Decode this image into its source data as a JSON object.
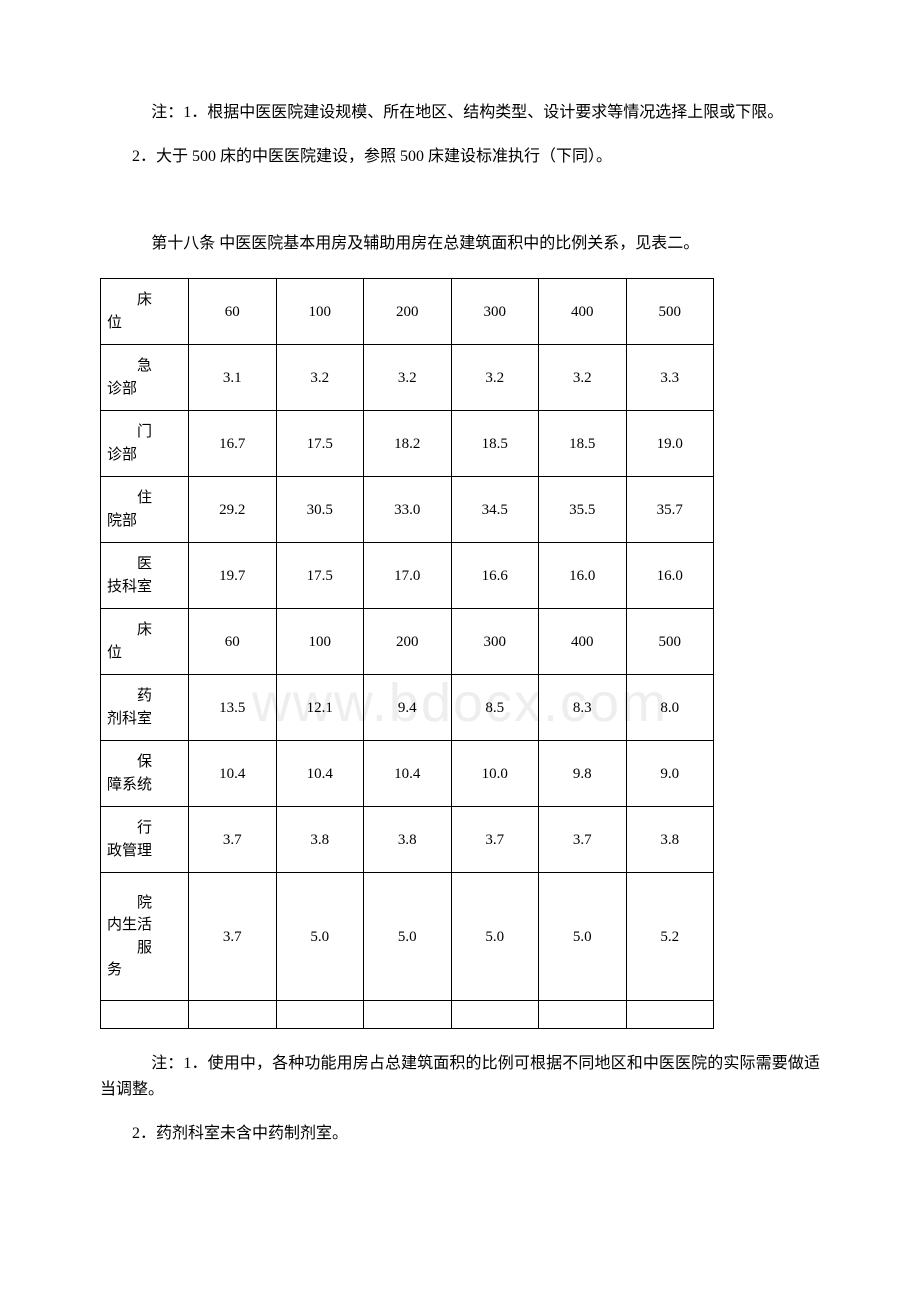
{
  "watermark": "www.bdocx.com",
  "paragraphs": {
    "note1a": "注：1．根据中医医院建设规模、所在地区、结构类型、设计要求等情况选择上限或下限。",
    "note1b": "2．大于 500 床的中医医院建设，参照 500 床建设标准执行（下同）。",
    "article18": "第十八条  中医医院基本用房及辅助用房在总建筑面积中的比例关系，见表二。",
    "note2a": "注：1．使用中，各种功能用房占总建筑面积的比例可根据不同地区和中医医院的实际需要做适当调整。",
    "note2b": "2．药剂科室未含中药制剂室。"
  },
  "table": {
    "rowlabels": {
      "r0a": "床",
      "r0b": "位",
      "r1a": "急",
      "r1b": "诊部",
      "r2a": "门",
      "r2b": "诊部",
      "r3a": "住",
      "r3b": "院部",
      "r4a": "医",
      "r4b": "技科室",
      "r5a": "床",
      "r5b": "位",
      "r6a": "药",
      "r6b": "剂科室",
      "r7a": "保",
      "r7b": "障系统",
      "r8a": "行",
      "r8b": "政管理",
      "r9a": "院",
      "r9b": "内生活",
      "r9c": "服",
      "r9d": "务"
    },
    "rows": [
      [
        "60",
        "100",
        "200",
        "300",
        "400",
        "500"
      ],
      [
        "3.1",
        "3.2",
        "3.2",
        "3.2",
        "3.2",
        "3.3"
      ],
      [
        "16.7",
        "17.5",
        "18.2",
        "18.5",
        "18.5",
        "19.0"
      ],
      [
        "29.2",
        "30.5",
        "33.0",
        "34.5",
        "35.5",
        "35.7"
      ],
      [
        "19.7",
        "17.5",
        "17.0",
        "16.6",
        "16.0",
        "16.0"
      ],
      [
        "60",
        "100",
        "200",
        "300",
        "400",
        "500"
      ],
      [
        "13.5",
        "12.1",
        "9.4",
        "8.5",
        "8.3",
        "8.0"
      ],
      [
        "10.4",
        "10.4",
        "10.4",
        "10.0",
        "9.8",
        "9.0"
      ],
      [
        "3.7",
        "3.8",
        "3.8",
        "3.7",
        "3.7",
        "3.8"
      ],
      [
        "3.7",
        "5.0",
        "5.0",
        "5.0",
        "5.0",
        "5.2"
      ]
    ],
    "colors": {
      "border": "#000000",
      "background": "#ffffff",
      "text": "#000000",
      "watermark": "#eeeeee"
    }
  }
}
